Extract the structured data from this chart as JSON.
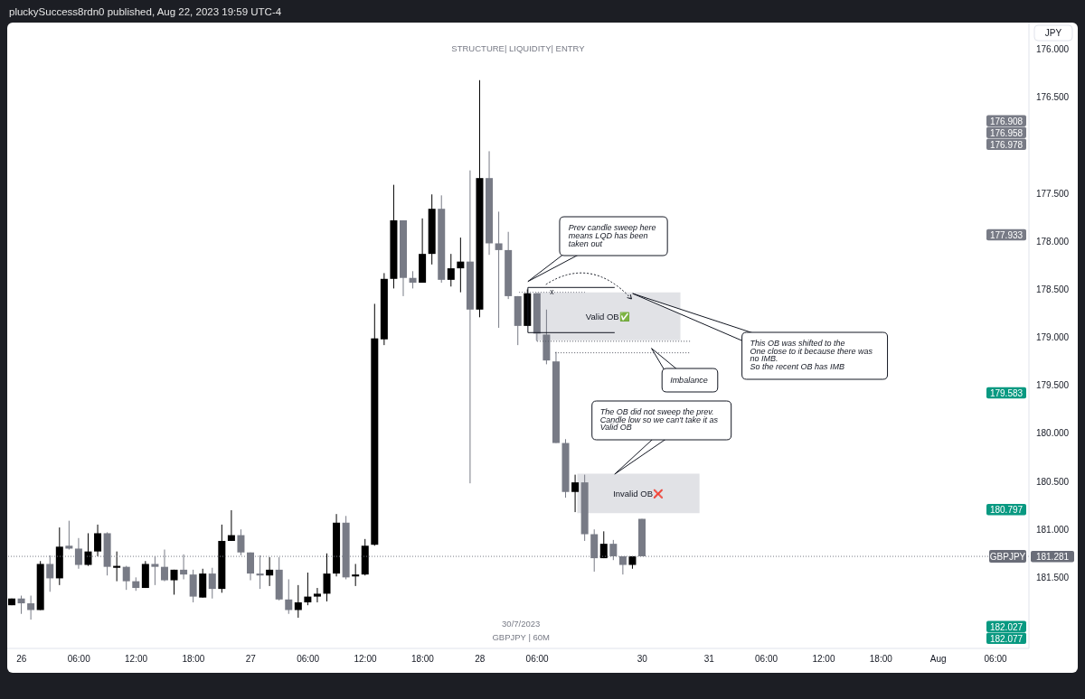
{
  "chart_data": {
    "type": "candlestick",
    "title": "STRUCTURE| LIQUIDITY| ENTRY",
    "ylabel": "JPY",
    "categories": [
      null,
      "26",
      null,
      null,
      null,
      null,
      null,
      "06:00",
      null,
      null,
      null,
      null,
      null,
      "12:00",
      null,
      null,
      null,
      null,
      null,
      "18:00",
      null,
      null,
      null,
      null,
      null,
      "27",
      null,
      null,
      null,
      null,
      null,
      "06:00",
      null,
      null,
      null,
      null,
      null,
      "12:00",
      null,
      null,
      null,
      null,
      null,
      "18:00",
      null,
      null,
      null,
      null,
      null,
      "28",
      null,
      null,
      null,
      null,
      null,
      "06:00",
      null,
      null,
      null,
      null,
      null,
      null,
      null,
      null,
      null,
      null,
      "30",
      null,
      null,
      null,
      null,
      null,
      null,
      "31",
      null,
      null,
      null,
      null,
      null,
      "06:00",
      null,
      null,
      null,
      null,
      null,
      "12:00",
      null,
      null,
      null,
      null,
      null,
      "18:00",
      null,
      null,
      null,
      null,
      null,
      "Aug",
      null,
      null,
      null,
      null,
      null,
      "06:00",
      null,
      null,
      null
    ],
    "ohlc": [
      [
        181.79,
        181.79,
        181.72,
        181.72
      ],
      [
        181.72,
        181.88,
        181.69,
        181.77
      ],
      [
        181.77,
        181.94,
        181.69,
        181.84
      ],
      [
        181.84,
        181.84,
        181.33,
        181.36
      ],
      [
        181.36,
        181.65,
        181.27,
        181.51
      ],
      [
        181.51,
        181.58,
        180.98,
        181.18
      ],
      [
        181.17,
        181.21,
        180.91,
        181.2
      ],
      [
        181.2,
        181.41,
        181.09,
        181.37
      ],
      [
        181.37,
        181.38,
        181.04,
        181.23
      ],
      [
        181.23,
        181.28,
        180.95,
        181.04
      ],
      [
        181.04,
        181.48,
        181.03,
        181.39
      ],
      [
        181.4,
        181.54,
        181.23,
        181.38
      ],
      [
        181.39,
        181.63,
        181.38,
        181.54
      ],
      [
        181.54,
        181.64,
        181.5,
        181.61
      ],
      [
        181.61,
        181.61,
        181.33,
        181.36
      ],
      [
        181.36,
        181.58,
        181.28,
        181.39
      ],
      [
        181.39,
        181.54,
        181.21,
        181.53
      ],
      [
        181.53,
        181.68,
        181.42,
        181.42
      ],
      [
        181.42,
        181.52,
        181.26,
        181.47
      ],
      [
        181.47,
        181.76,
        181.42,
        181.7
      ],
      [
        181.71,
        181.71,
        181.41,
        181.46
      ],
      [
        181.46,
        181.72,
        181.4,
        181.62
      ],
      [
        181.62,
        181.66,
        180.95,
        181.12
      ],
      [
        181.12,
        181.12,
        180.8,
        181.06
      ],
      [
        181.06,
        181.27,
        181.0,
        181.24
      ],
      [
        181.24,
        181.53,
        181.24,
        181.46
      ],
      [
        181.46,
        181.62,
        181.27,
        181.48
      ],
      [
        181.48,
        181.59,
        181.29,
        181.42
      ],
      [
        181.42,
        181.74,
        181.29,
        181.73
      ],
      [
        181.73,
        181.88,
        181.52,
        181.84
      ],
      [
        181.84,
        181.92,
        181.58,
        181.76
      ],
      [
        181.76,
        181.79,
        181.45,
        181.7
      ],
      [
        181.7,
        181.76,
        181.61,
        181.67
      ],
      [
        181.67,
        181.75,
        181.25,
        181.46
      ],
      [
        181.46,
        181.49,
        180.84,
        180.93
      ],
      [
        180.93,
        181.52,
        180.86,
        181.5
      ],
      [
        181.49,
        181.59,
        181.36,
        181.47
      ],
      [
        181.47,
        181.48,
        181.1,
        181.17
      ],
      [
        181.16,
        181.17,
        178.65,
        179.01
      ],
      [
        179.02,
        179.08,
        178.33,
        178.39
      ],
      [
        178.39,
        178.49,
        177.41,
        177.78
      ],
      [
        177.78,
        178.57,
        177.78,
        178.38
      ],
      [
        178.38,
        178.49,
        178.31,
        178.43
      ],
      [
        178.43,
        178.43,
        177.76,
        178.13
      ],
      [
        178.13,
        178.24,
        177.51,
        177.66
      ],
      [
        177.66,
        178.43,
        177.52,
        178.4
      ],
      [
        178.4,
        178.47,
        178.13,
        178.28
      ],
      [
        178.28,
        178.53,
        177.96,
        178.21
      ],
      [
        178.21,
        180.52,
        177.26,
        178.71
      ],
      [
        178.71,
        178.79,
        176.32,
        177.34
      ],
      [
        177.34,
        178.14,
        177.06,
        178.02
      ],
      [
        178.02,
        178.9,
        177.69,
        178.09
      ],
      [
        178.09,
        178.6,
        177.9,
        178.57
      ],
      [
        178.57,
        179.08,
        178.57,
        178.88
      ],
      [
        178.88,
        178.88,
        178.5,
        178.54
      ],
      [
        178.54,
        179.04,
        178.54,
        178.96
      ],
      [
        178.97,
        179.28,
        178.71,
        179.24
      ],
      [
        179.25,
        180.1,
        179.15,
        180.1
      ],
      [
        180.1,
        180.67,
        180.06,
        180.61
      ],
      [
        180.61,
        180.82,
        180.43,
        180.51
      ],
      [
        180.51,
        181.12,
        180.43,
        181.05
      ],
      [
        181.05,
        181.44,
        181.0,
        181.3
      ],
      [
        181.3,
        181.3,
        181.02,
        181.15
      ],
      [
        181.15,
        181.32,
        181.11,
        181.28
      ],
      [
        181.28,
        181.47,
        181.28,
        181.37
      ],
      [
        181.37,
        181.41,
        181.28,
        181.28
      ],
      [
        180.89,
        181.28,
        180.89,
        181.28
      ],
      null,
      null,
      null,
      null,
      null,
      null,
      null,
      null,
      null,
      null,
      null,
      null,
      null,
      null,
      null,
      null,
      null,
      null,
      null,
      null,
      null,
      null,
      null,
      null,
      null,
      null,
      null,
      null,
      null,
      null,
      null,
      null,
      null,
      null,
      null,
      null,
      null,
      null,
      null,
      null
    ],
    "colors": [
      "#000000",
      "#787b86",
      "#787b86",
      "#000000",
      "#787b86",
      "#000000",
      "#787b86",
      "#787b86",
      "#000000",
      "#000000",
      "#787b86",
      "#000000",
      "#787b86",
      "#787b86",
      "#000000",
      "#787b86",
      "#787b86",
      "#000000",
      "#787b86",
      "#787b86",
      "#000000",
      "#787b86",
      "#000000",
      "#000000",
      "#787b86",
      "#787b86",
      "#787b86",
      "#000000",
      "#787b86",
      "#787b86",
      "#000000",
      "#000000",
      "#000000",
      "#000000",
      "#000000",
      "#787b86",
      "#000000",
      "#000000",
      "#000000",
      "#000000",
      "#000000",
      "#787b86",
      "#787b86",
      "#000000",
      "#000000",
      "#787b86",
      "#000000",
      "#000000",
      "#787b86",
      "#000000",
      "#787b86",
      "#787b86",
      "#787b86",
      "#787b86",
      "#000000",
      "#787b86",
      "#787b86",
      "#787b86",
      "#787b86",
      "#000000",
      "#787b86",
      "#787b86",
      "#000000",
      "#787b86",
      "#787b86",
      "#000000",
      "#787b86",
      null,
      null,
      null,
      null,
      null,
      null,
      null,
      null,
      null,
      null,
      null,
      null,
      null,
      null,
      null,
      null,
      null,
      null,
      null,
      null,
      null,
      null,
      null,
      null,
      null,
      null,
      null,
      null,
      null,
      null,
      null,
      null,
      null,
      null,
      null,
      null,
      null,
      null,
      null,
      null
    ],
    "ylim": [
      182.24,
      175.72
    ],
    "yticks": [
      {
        "value": 176,
        "label": "176.000"
      },
      {
        "value": 176.5,
        "label": "176.500"
      },
      {
        "value": 177.5,
        "label": "177.500"
      },
      {
        "value": 178,
        "label": "178.000"
      },
      {
        "value": 178.5,
        "label": "178.500"
      },
      {
        "value": 179,
        "label": "179.000"
      },
      {
        "value": 179.5,
        "label": "179.500"
      },
      {
        "value": 180,
        "label": "180.000"
      },
      {
        "value": 180.5,
        "label": "180.500"
      },
      {
        "value": 181,
        "label": "181.000"
      },
      {
        "value": 181.5,
        "label": "181.500"
      }
    ],
    "ref_lines": [
      {
        "axis": "y",
        "value": 181.281,
        "label": "GBPJPY",
        "color": "#787b86",
        "line_style": "dotted"
      },
      {
        "axis": "y",
        "value": 178.53,
        "label": "x",
        "color": "#787b86",
        "line_style": "dotted"
      },
      {
        "axis": "y",
        "value": 179.04,
        "color": "#50535e",
        "line_style": "dotted"
      },
      {
        "axis": "y",
        "value": 179.16,
        "color": "#50535e",
        "line_style": "dotted"
      }
    ],
    "bands": [
      {
        "axis": "y",
        "from": 178.53,
        "to": 179.03,
        "label": "Valid OB✅",
        "color": "#e1e2e6"
      },
      {
        "axis": "y",
        "from": 180.42,
        "to": 180.83,
        "label": "Invalid OB❌",
        "color": "#e1e2e6"
      }
    ],
    "annotations": [
      "pluckySuccess8rdn0 published, Aug 22, 2023 19:59 UTC-4",
      "30/7/2023",
      "GBPJPY | 60M",
      "Prev candle sweep here\nmeans LQD has been\ntaken out",
      "This OB was shifted to the\nOne close to it because there was\nno IMB.\nSo the recent OB has IMB",
      "Imbalance",
      "The OB did not sweep the prev.\nCandle low so we can't take it as\nValid OB",
      "176.908",
      "176.958",
      "176.978",
      "177.933",
      "179.583",
      "180.797",
      "182.027",
      "182.077",
      "181.281"
    ]
  }
}
